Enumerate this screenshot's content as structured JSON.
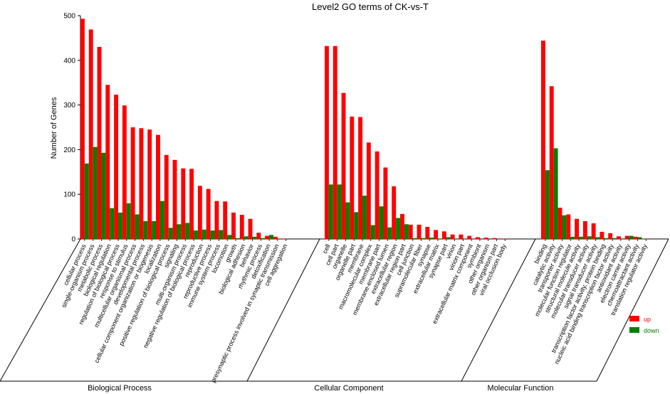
{
  "chart_data": {
    "type": "bar",
    "title": "Level2 GO terms of CK-vs-T",
    "ylabel": "Number of Genes",
    "xlabel": "",
    "ylim": [
      0,
      500
    ],
    "yticks": [
      0,
      100,
      200,
      300,
      400,
      500
    ],
    "grid": false,
    "legend_position": "bottom-right",
    "colors": {
      "up": "#ff0000",
      "down": "#008000"
    },
    "series": [
      {
        "name": "up"
      },
      {
        "name": "down"
      }
    ],
    "groups": [
      {
        "name": "Biological Process",
        "terms": [
          {
            "label": "cellular process",
            "up": 493,
            "down": 169
          },
          {
            "label": "single-organism process",
            "up": 469,
            "down": 206
          },
          {
            "label": "metabolic process",
            "up": 430,
            "down": 193
          },
          {
            "label": "biological regulation",
            "up": 345,
            "down": 69
          },
          {
            "label": "regulation of biological process",
            "up": 323,
            "down": 59
          },
          {
            "label": "response to stimulus",
            "up": 299,
            "down": 80
          },
          {
            "label": "multicellular organismal process",
            "up": 250,
            "down": 55
          },
          {
            "label": "developmental process",
            "up": 248,
            "down": 40
          },
          {
            "label": "cellular component organization or biogenesis",
            "up": 245,
            "down": 40
          },
          {
            "label": "localization",
            "up": 233,
            "down": 85
          },
          {
            "label": "positive regulation of biological process",
            "up": 188,
            "down": 25
          },
          {
            "label": "signaling",
            "up": 177,
            "down": 33
          },
          {
            "label": "multi-organism process",
            "up": 158,
            "down": 36
          },
          {
            "label": "negative regulation of biological process",
            "up": 157,
            "down": 19
          },
          {
            "label": "reproduction",
            "up": 119,
            "down": 21
          },
          {
            "label": "reproductive process",
            "up": 112,
            "down": 19
          },
          {
            "label": "immune system process",
            "up": 85,
            "down": 20
          },
          {
            "label": "locomotion",
            "up": 84,
            "down": 9
          },
          {
            "label": "growth",
            "up": 59,
            "down": 2
          },
          {
            "label": "biological adhesion",
            "up": 54,
            "down": 6
          },
          {
            "label": "behavior",
            "up": 45,
            "down": 5
          },
          {
            "label": "rhythmic process",
            "up": 14,
            "down": 2
          },
          {
            "label": "detoxification",
            "up": 7,
            "down": 9
          },
          {
            "label": "presynaptic process involved in synaptic transmission",
            "up": 5,
            "down": 0
          },
          {
            "label": "cell aggregation",
            "up": 1,
            "down": 0
          }
        ]
      },
      {
        "name": "Cellular Component",
        "terms": [
          {
            "label": "cell",
            "up": 432,
            "down": 122
          },
          {
            "label": "cell part",
            "up": 432,
            "down": 122
          },
          {
            "label": "organelle",
            "up": 327,
            "down": 82
          },
          {
            "label": "organelle part",
            "up": 274,
            "down": 60
          },
          {
            "label": "membrane",
            "up": 273,
            "down": 97
          },
          {
            "label": "macromolecular complex",
            "up": 216,
            "down": 31
          },
          {
            "label": "membrane part",
            "up": 196,
            "down": 73
          },
          {
            "label": "membrane-enclosed lumen",
            "up": 160,
            "down": 26
          },
          {
            "label": "extracellular region",
            "up": 118,
            "down": 47
          },
          {
            "label": "extracellular region part",
            "up": 56,
            "down": 33
          },
          {
            "label": "cell junction",
            "up": 32,
            "down": 2
          },
          {
            "label": "supramolecular fiber",
            "up": 32,
            "down": 2
          },
          {
            "label": "synapse",
            "up": 27,
            "down": 3
          },
          {
            "label": "extracellular matrix",
            "up": 20,
            "down": 1
          },
          {
            "label": "synapse part",
            "up": 17,
            "down": 4
          },
          {
            "label": "virion",
            "up": 10,
            "down": 0
          },
          {
            "label": "virion part",
            "up": 10,
            "down": 0
          },
          {
            "label": "extracellular matrix component",
            "up": 7,
            "down": 0
          },
          {
            "label": "symbiont",
            "up": 4,
            "down": 0
          },
          {
            "label": "other organism",
            "up": 3,
            "down": 0
          },
          {
            "label": "other organism part",
            "up": 2,
            "down": 0
          },
          {
            "label": "viral occlusion body",
            "up": 1,
            "down": 0
          }
        ]
      },
      {
        "name": "Molecular Function",
        "terms": [
          {
            "label": "binding",
            "up": 444,
            "down": 154
          },
          {
            "label": "catalytic activity",
            "up": 342,
            "down": 203
          },
          {
            "label": "transporter activity",
            "up": 70,
            "down": 53
          },
          {
            "label": "molecular function regulator",
            "up": 55,
            "down": 5
          },
          {
            "label": "structural molecule activity",
            "up": 45,
            "down": 5
          },
          {
            "label": "molecular transducer activity",
            "up": 40,
            "down": 6
          },
          {
            "label": "signal transducer activity",
            "up": 35,
            "down": 4
          },
          {
            "label": "transcription factor activity, protein binding",
            "up": 16,
            "down": 2
          },
          {
            "label": "nucleic acid binding transcription factor activity",
            "up": 13,
            "down": 2
          },
          {
            "label": "antioxidant activity",
            "up": 6,
            "down": 0
          },
          {
            "label": "electron carrier activity",
            "up": 7,
            "down": 7
          },
          {
            "label": "chemoattractant activity",
            "up": 5,
            "down": 4
          },
          {
            "label": "translation regulator activity",
            "up": 1,
            "down": 0
          }
        ]
      }
    ]
  }
}
